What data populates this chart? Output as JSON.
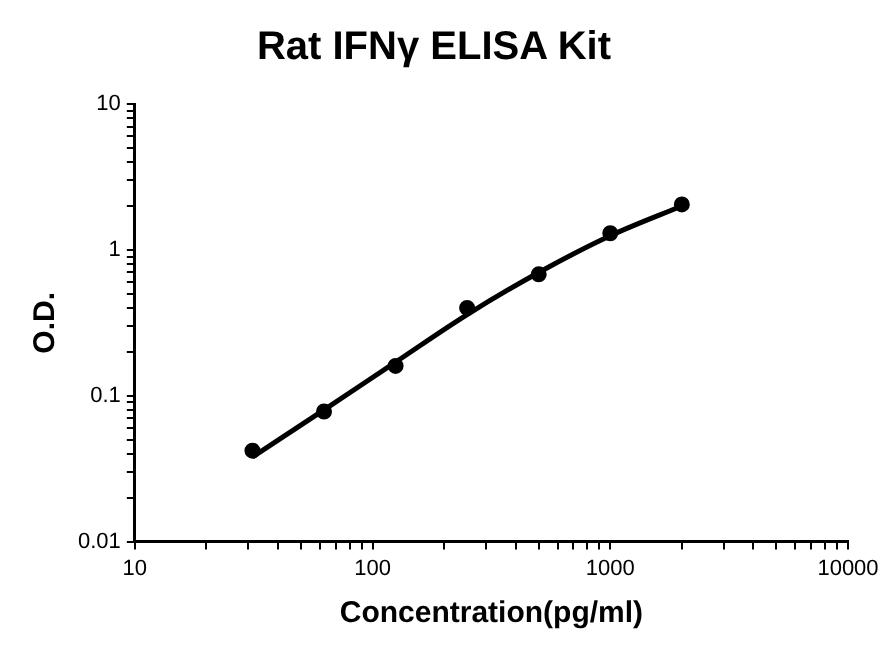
{
  "chart_data": {
    "type": "scatter",
    "title": "Rat IFNγ ELISA Kit",
    "xlabel": "Concentration(pg/ml)",
    "ylabel": "O.D.",
    "log": "xy",
    "grid": false,
    "legend": false,
    "marker": "circle",
    "xlim": [
      10,
      10000
    ],
    "ylim": [
      0.01,
      10
    ],
    "xticks": [
      10,
      {
        "value": 20,
        "label": null
      },
      {
        "value": 30,
        "label": null
      },
      {
        "value": 40,
        "label": null
      },
      {
        "value": 50,
        "label": null
      },
      {
        "value": 60,
        "label": null
      },
      {
        "value": 70,
        "label": null
      },
      {
        "value": 80,
        "label": null
      },
      {
        "value": 90,
        "label": null
      },
      100,
      {
        "value": 200,
        "label": null
      },
      {
        "value": 300,
        "label": null
      },
      {
        "value": 400,
        "label": null
      },
      {
        "value": 500,
        "label": null
      },
      {
        "value": 600,
        "label": null
      },
      {
        "value": 700,
        "label": null
      },
      {
        "value": 800,
        "label": null
      },
      {
        "value": 900,
        "label": null
      },
      1000,
      {
        "value": 2000,
        "label": null
      },
      {
        "value": 3000,
        "label": null
      },
      {
        "value": 4000,
        "label": null
      },
      {
        "value": 5000,
        "label": null
      },
      {
        "value": 6000,
        "label": null
      },
      {
        "value": 7000,
        "label": null
      },
      {
        "value": 8000,
        "label": null
      },
      {
        "value": 9000,
        "label": null
      },
      10000
    ],
    "yticks": [
      0.01,
      {
        "value": 0.02,
        "label": null
      },
      {
        "value": 0.03,
        "label": null
      },
      {
        "value": 0.04,
        "label": null
      },
      {
        "value": 0.05,
        "label": null
      },
      {
        "value": 0.06,
        "label": null
      },
      {
        "value": 0.07,
        "label": null
      },
      {
        "value": 0.08,
        "label": null
      },
      {
        "value": 0.09,
        "label": null
      },
      0.1,
      {
        "value": 0.2,
        "label": null
      },
      {
        "value": 0.3,
        "label": null
      },
      {
        "value": 0.4,
        "label": null
      },
      {
        "value": 0.5,
        "label": null
      },
      {
        "value": 0.6,
        "label": null
      },
      {
        "value": 0.7,
        "label": null
      },
      {
        "value": 0.8,
        "label": null
      },
      {
        "value": 0.9,
        "label": null
      },
      1,
      {
        "value": 2,
        "label": null
      },
      {
        "value": 3,
        "label": null
      },
      {
        "value": 4,
        "label": null
      },
      {
        "value": 5,
        "label": null
      },
      {
        "value": 6,
        "label": null
      },
      {
        "value": 7,
        "label": null
      },
      {
        "value": 8,
        "label": null
      },
      {
        "value": 9,
        "label": null
      },
      10
    ],
    "series": [
      {
        "color": "#000000",
        "x": [
          31.25,
          62.5,
          125,
          250,
          500,
          1000,
          2000
        ],
        "values": [
          0.042,
          0.078,
          0.16,
          0.4,
          0.68,
          1.3,
          2.05
        ]
      },
      {
        "type": "line",
        "color": "#000000",
        "marker": "none",
        "x": [
          31.25,
          62.5,
          125,
          250,
          500,
          1000,
          2000
        ],
        "values": [
          0.038,
          0.08,
          0.17,
          0.36,
          0.7,
          1.25,
          2.0
        ]
      }
    ]
  }
}
